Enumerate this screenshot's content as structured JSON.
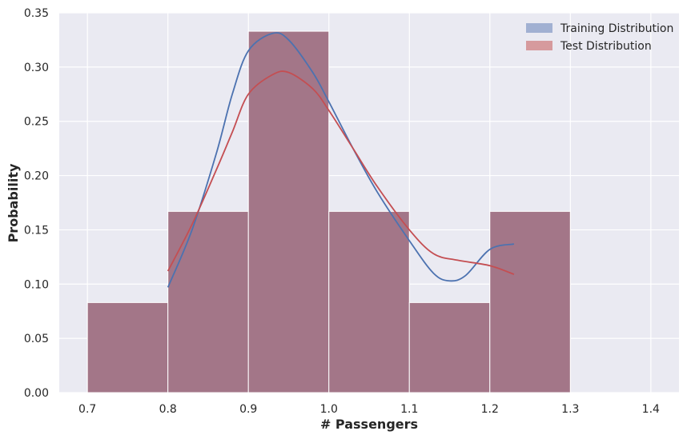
{
  "chart_data": {
    "type": "histogram",
    "xlabel": "# Passengers",
    "ylabel": "Probability",
    "xlim": [
      0.665,
      1.435
    ],
    "ylim": [
      0,
      0.35
    ],
    "xticks": [
      0.7,
      0.8,
      0.9,
      1.0,
      1.1,
      1.2,
      1.3,
      1.4
    ],
    "xtick_labels": [
      "0.7",
      "0.8",
      "0.9",
      "1.0",
      "1.1",
      "1.2",
      "1.3",
      "1.4"
    ],
    "yticks": [
      0,
      0.05,
      0.1,
      0.15,
      0.2,
      0.25,
      0.3,
      0.35
    ],
    "ytick_labels": [
      "0.00",
      "0.05",
      "0.10",
      "0.15",
      "0.20",
      "0.25",
      "0.30",
      "0.35"
    ],
    "grid": true,
    "legend_position": "top-right",
    "bins": [
      {
        "x0": 0.7,
        "x1": 0.8,
        "value": 0.083
      },
      {
        "x0": 0.8,
        "x1": 0.9,
        "value": 0.167
      },
      {
        "x0": 0.9,
        "x1": 1.0,
        "value": 0.333
      },
      {
        "x0": 1.0,
        "x1": 1.1,
        "value": 0.167
      },
      {
        "x0": 1.1,
        "x1": 1.2,
        "value": 0.083
      },
      {
        "x0": 1.2,
        "x1": 1.3,
        "value": 0.167
      }
    ],
    "series": [
      {
        "name": "Training Distribution",
        "color": "#4c72b0",
        "fill": "#a1b0d2",
        "kde": [
          [
            0.8,
            0.097
          ],
          [
            0.83,
            0.15
          ],
          [
            0.86,
            0.22
          ],
          [
            0.88,
            0.275
          ],
          [
            0.9,
            0.315
          ],
          [
            0.93,
            0.331
          ],
          [
            0.95,
            0.325
          ],
          [
            0.98,
            0.295
          ],
          [
            1.0,
            0.268
          ],
          [
            1.03,
            0.225
          ],
          [
            1.06,
            0.185
          ],
          [
            1.1,
            0.14
          ],
          [
            1.13,
            0.11
          ],
          [
            1.15,
            0.103
          ],
          [
            1.17,
            0.108
          ],
          [
            1.2,
            0.132
          ],
          [
            1.23,
            0.137
          ]
        ]
      },
      {
        "name": "Test Distribution",
        "color": "#c44e52",
        "fill": "#d69a9d",
        "kde": [
          [
            0.8,
            0.112
          ],
          [
            0.83,
            0.155
          ],
          [
            0.86,
            0.205
          ],
          [
            0.88,
            0.24
          ],
          [
            0.9,
            0.275
          ],
          [
            0.93,
            0.293
          ],
          [
            0.95,
            0.295
          ],
          [
            0.98,
            0.28
          ],
          [
            1.0,
            0.26
          ],
          [
            1.03,
            0.225
          ],
          [
            1.06,
            0.19
          ],
          [
            1.1,
            0.15
          ],
          [
            1.13,
            0.128
          ],
          [
            1.16,
            0.122
          ],
          [
            1.2,
            0.117
          ],
          [
            1.23,
            0.109
          ]
        ]
      }
    ]
  }
}
